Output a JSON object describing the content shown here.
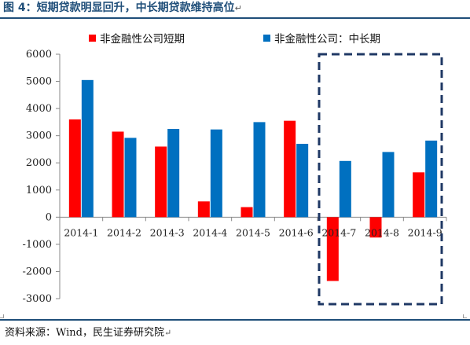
{
  "figure": {
    "title": "图 4：短期贷款明显回升，中长期贷款维持高位",
    "para_mark": "↵",
    "source": "资料来源：Wind，民生证券研究院",
    "source_mark": "↵"
  },
  "colors": {
    "title": "#1f4e79",
    "short_term": "#ff0000",
    "long_term": "#0070c0",
    "highlight_box": "#1f3864"
  },
  "chart_data": {
    "type": "bar",
    "categories": [
      "2014-1",
      "2014-2",
      "2014-3",
      "2014-4",
      "2014-5",
      "2014-6",
      "2014-7",
      "2014-8",
      "2014-9"
    ],
    "series": [
      {
        "name": "非金融性公司短期",
        "values": [
          3600,
          3150,
          2600,
          580,
          370,
          3550,
          -2350,
          -750,
          1650
        ]
      },
      {
        "name": "非金融性公司：中长期",
        "values": [
          5050,
          2920,
          3250,
          3230,
          3500,
          2700,
          2070,
          2400,
          2820
        ]
      }
    ],
    "yticks": [
      6000,
      5000,
      4000,
      3000,
      2000,
      1000,
      0,
      -1000,
      -2000,
      -3000
    ],
    "ylim": [
      -3000,
      6000
    ],
    "legend_position": "top",
    "grid": false,
    "highlight": {
      "categories": [
        "2014-7",
        "2014-8",
        "2014-9"
      ],
      "style": "dashed-box"
    }
  }
}
